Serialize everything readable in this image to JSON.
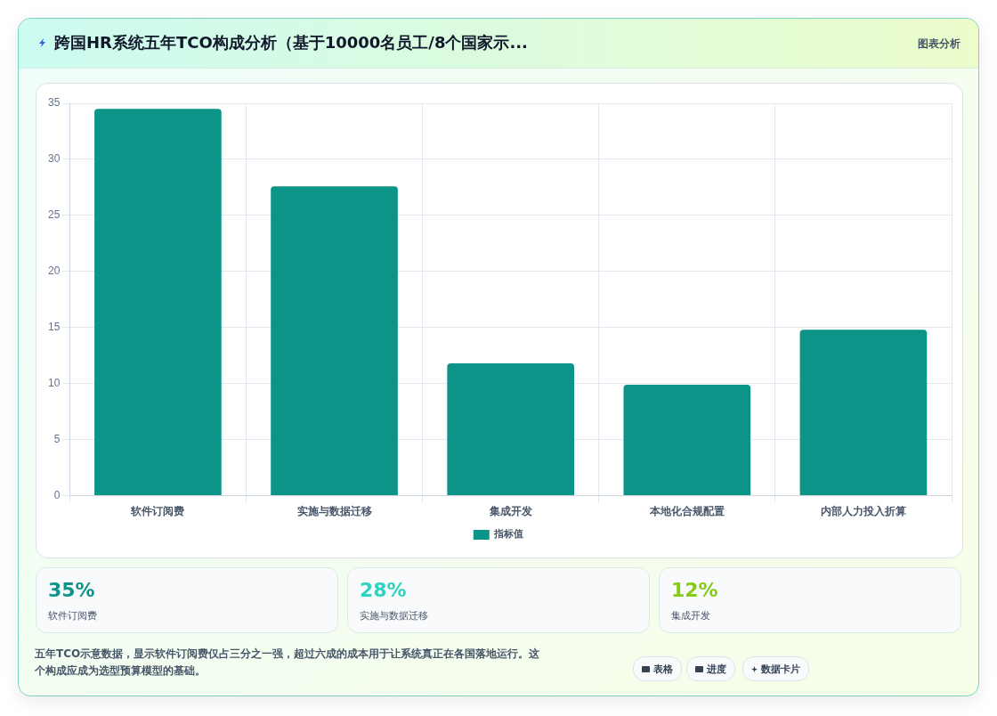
{
  "chart_data": {
    "type": "bar",
    "title": "跨国HR系统五年TCO构成分析（基于10000名员工/8个国家示...",
    "categories": [
      "软件订阅费",
      "实施与数据迁移",
      "集成开发",
      "本地化合规配置",
      "内部人力投入折算"
    ],
    "series": [
      {
        "name": "指标值",
        "color": "#0d9488",
        "values": [
          34.5,
          27.6,
          11.8,
          9.9,
          14.8
        ]
      }
    ],
    "ylim": [
      0,
      35
    ],
    "yticks": [
      0,
      5,
      10,
      15,
      20,
      25,
      30,
      35
    ],
    "grid": true,
    "legend": "bottom",
    "annotations": [
      "图表分析",
      "35%",
      "软件订阅费",
      "28%",
      "实施与数据迁移",
      "12%",
      "集成开发",
      "五年TCO示意数据，显示软件订阅费仅占三分之一强，超过六成的成本用于让系统真正在各国落地运行。这个构成应成为选型预算模型的基础。",
      "表格",
      "进度",
      "数据卡片"
    ]
  }
}
